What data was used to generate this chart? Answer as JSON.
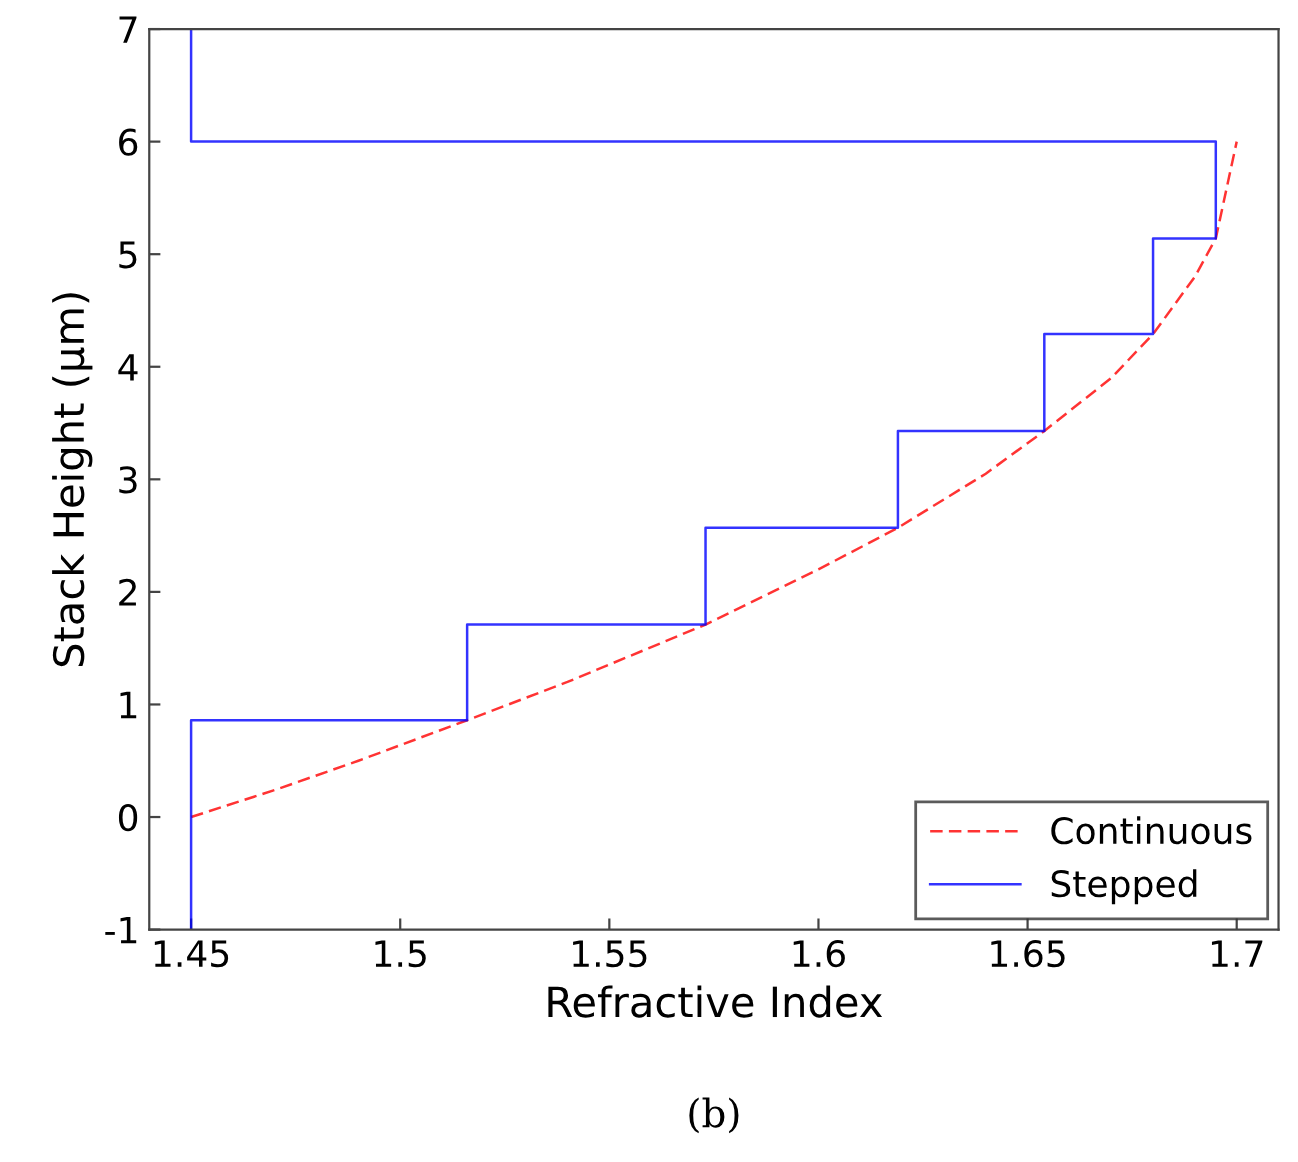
{
  "chart_data": {
    "type": "line",
    "xlabel": "Refractive Index",
    "ylabel": "Stack Height (μm)",
    "annotations": [
      "(b)"
    ],
    "xlim": [
      1.44,
      1.71
    ],
    "ylim": [
      -1,
      7
    ],
    "xticks": [
      1.45,
      1.5,
      1.55,
      1.6,
      1.65,
      1.7
    ],
    "yticks": [
      -1,
      0,
      1,
      2,
      3,
      4,
      5,
      6,
      7
    ],
    "grid": false,
    "legend": "bottom right",
    "series": [
      {
        "name": "Continuous",
        "color": "#ff0000",
        "line_style": "dashed",
        "x": [
          1.45,
          1.47,
          1.49,
          1.516,
          1.54,
          1.573,
          1.6,
          1.619,
          1.64,
          1.654,
          1.67,
          1.68,
          1.69,
          1.695,
          1.7
        ],
        "values": [
          0,
          0.24,
          0.5,
          0.86,
          1.2,
          1.71,
          2.2,
          2.57,
          3.05,
          3.43,
          3.9,
          4.29,
          4.8,
          5.14,
          6
        ]
      },
      {
        "name": "Stepped",
        "color": "#0000ff",
        "type": "step",
        "line_style": "solid",
        "x": [
          1.45,
          1.45,
          1.516,
          1.516,
          1.573,
          1.573,
          1.619,
          1.619,
          1.654,
          1.654,
          1.68,
          1.68,
          1.695,
          1.695,
          1.45,
          1.45
        ],
        "values": [
          -1,
          0.86,
          0.86,
          1.71,
          1.71,
          2.57,
          2.57,
          3.43,
          3.43,
          4.29,
          4.29,
          5.14,
          5.14,
          6,
          6,
          7
        ]
      }
    ]
  }
}
